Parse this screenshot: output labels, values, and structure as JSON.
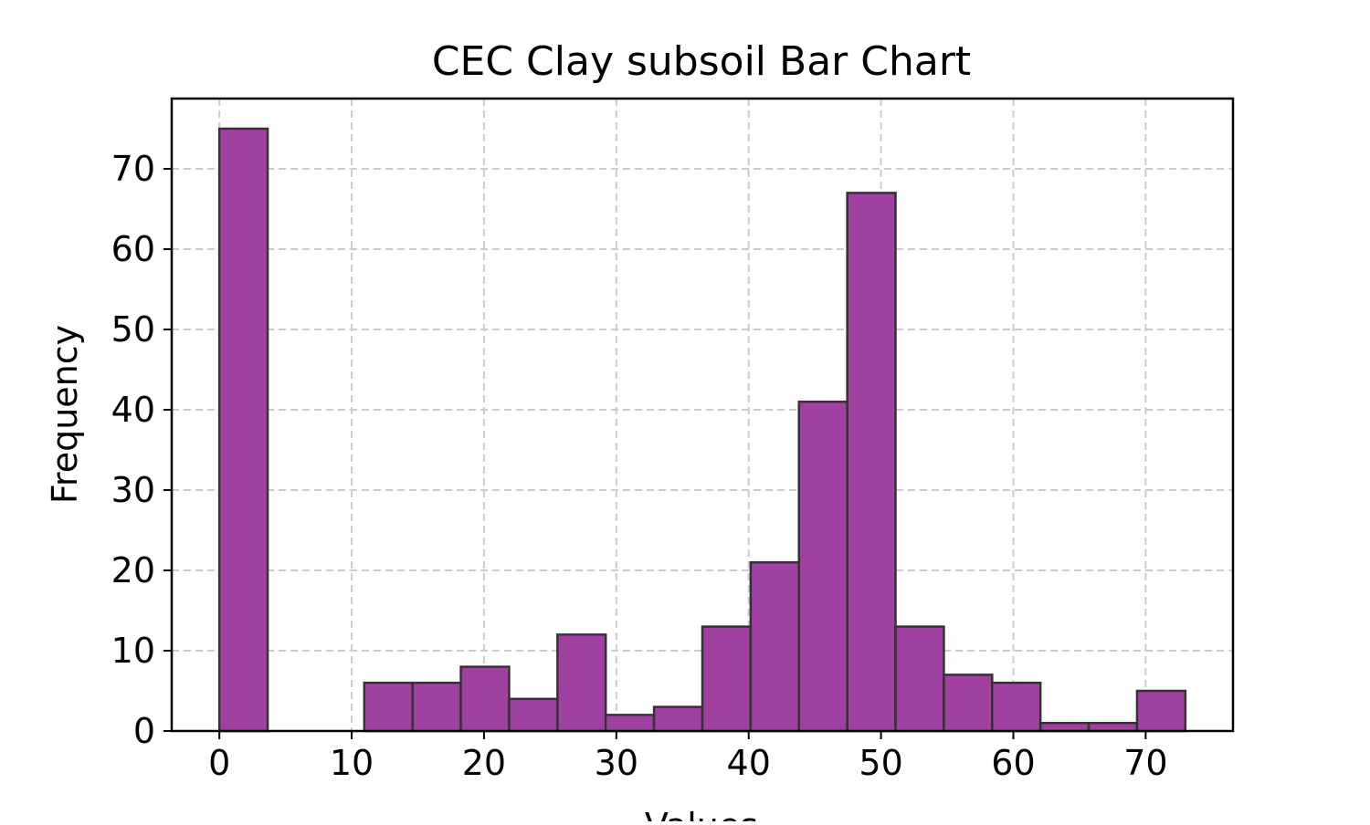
{
  "chart_data": {
    "type": "bar",
    "title": "CEC Clay subsoil Bar Chart",
    "xlabel": "Values",
    "ylabel": "Frequency",
    "xlim": [
      -3.6,
      76.6
    ],
    "ylim": [
      0,
      78.75
    ],
    "xticks": [
      0,
      10,
      20,
      30,
      40,
      50,
      60,
      70
    ],
    "yticks": [
      0,
      10,
      20,
      30,
      40,
      50,
      60,
      70
    ],
    "grid": true,
    "bin_edges": [
      0,
      3.65,
      7.3,
      10.95,
      14.6,
      18.25,
      21.9,
      25.55,
      29.2,
      32.85,
      36.5,
      40.15,
      43.8,
      47.45,
      51.1,
      54.75,
      58.4,
      62.05,
      65.7,
      69.35,
      73.0
    ],
    "values": [
      75,
      0,
      0,
      6,
      6,
      8,
      4,
      12,
      2,
      3,
      13,
      21,
      41,
      67,
      13,
      7,
      6,
      1,
      1,
      5
    ],
    "colors": {
      "bar_fill": "#a040a0",
      "bar_edge": "#333333",
      "grid": "#cccccc",
      "axes": "#000000"
    }
  }
}
